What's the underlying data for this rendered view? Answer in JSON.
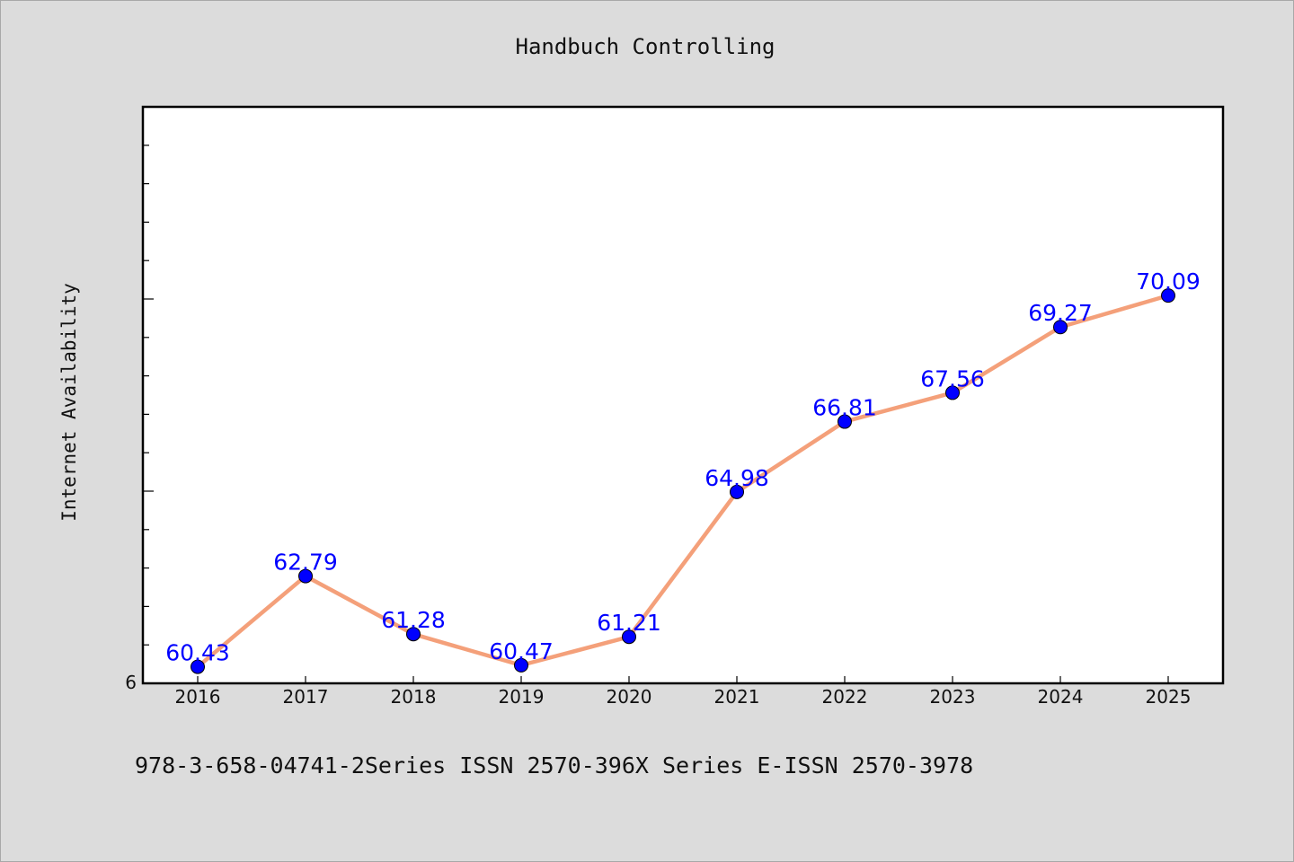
{
  "chart_data": {
    "type": "line",
    "title": "Handbuch Controlling",
    "xlabel": "",
    "ylabel": "Internet Availability",
    "categories": [
      "2016",
      "2017",
      "2018",
      "2019",
      "2020",
      "2021",
      "2022",
      "2023",
      "2024",
      "2025"
    ],
    "series": [
      {
        "values": [
          60.43,
          62.79,
          61.28,
          60.47,
          61.21,
          64.98,
          66.81,
          67.56,
          69.27,
          70.09
        ]
      }
    ],
    "data_labels": [
      "60.43",
      "62.79",
      "61.28",
      "60.47",
      "61.21",
      "64.98",
      "66.81",
      "67.56",
      "69.27",
      "70.09"
    ],
    "y_tick_label": "6",
    "ylim": [
      60,
      75
    ],
    "grid": false,
    "line_color": "#f4a07a",
    "marker_color": "#0000ff",
    "label_color": "#0000ff"
  },
  "footer": {
    "text": "978-3-658-04741-2Series ISSN 2570-396X Series E-ISSN 2570-3978"
  }
}
